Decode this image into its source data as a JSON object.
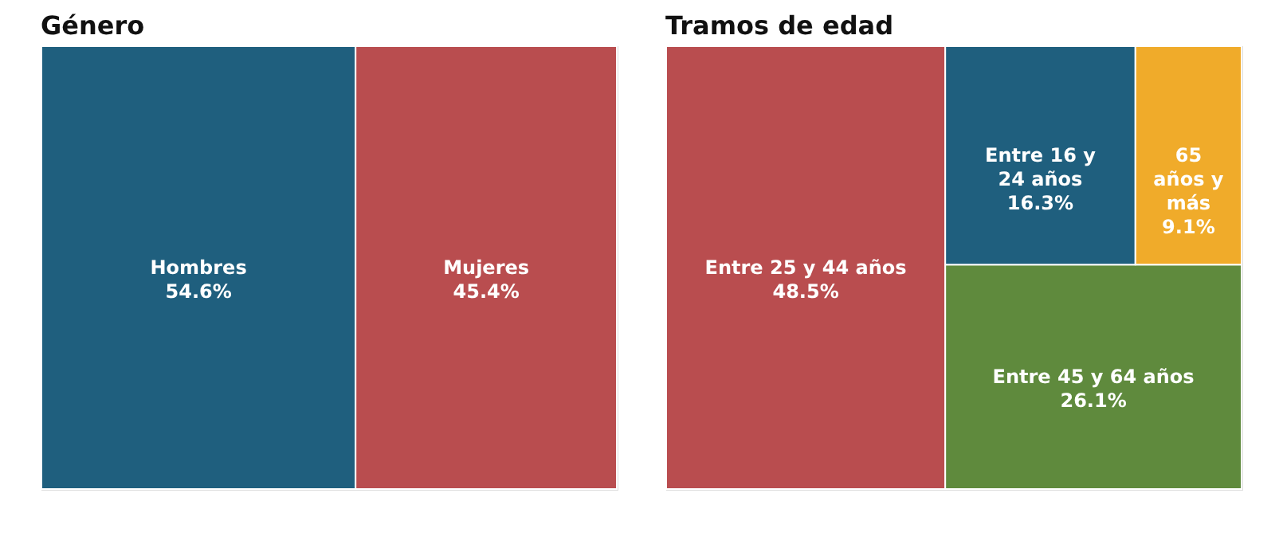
{
  "chart_data": [
    {
      "type": "other",
      "title": "Género",
      "categories": [
        "Hombres",
        "Mujeres"
      ],
      "values": [
        54.6,
        45.4
      ],
      "value_labels": [
        "54.6%",
        "45.4%"
      ],
      "colors": [
        "#1f5f7e",
        "#b94d4f"
      ]
    },
    {
      "type": "other",
      "title": "Tramos de edad",
      "categories": [
        "Entre 25 y 44 años",
        "Entre 45 y 64 años",
        "Entre 16 y 24 años",
        "65 años y más"
      ],
      "values": [
        48.5,
        26.1,
        16.3,
        9.1
      ],
      "value_labels": [
        "48.5%",
        "26.1%",
        "16.3%",
        "9.1%"
      ],
      "colors": [
        "#b94d4f",
        "#5f8a3d",
        "#1f5f7e",
        "#f0ab2a"
      ]
    }
  ]
}
